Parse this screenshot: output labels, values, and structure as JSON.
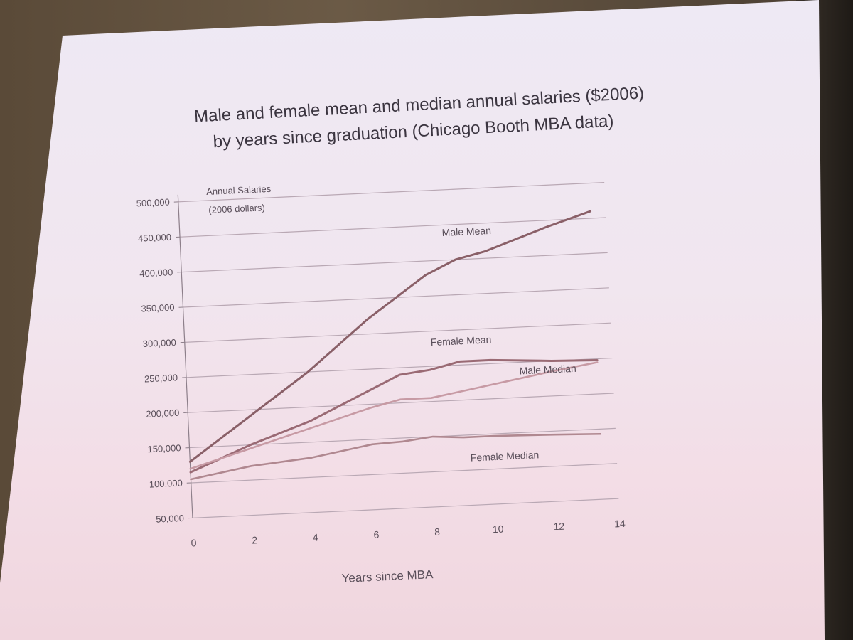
{
  "slide": {
    "title_line1": "Male and female mean and median annual salaries ($2006)",
    "title_line2": "by years since graduation  (Chicago Booth MBA data)"
  },
  "chart_data": {
    "type": "line",
    "ylabel_line1": "Annual Salaries",
    "ylabel_line2": "(2006 dollars)",
    "xlabel": "Years since MBA",
    "xlim": [
      0,
      14
    ],
    "ylim": [
      50000,
      500000
    ],
    "x_ticks": [
      "0",
      "2",
      "4",
      "6",
      "8",
      "10",
      "12",
      "14"
    ],
    "y_ticks": [
      "50,000",
      "100,000",
      "150,000",
      "200,000",
      "250,000",
      "300,000",
      "350,000",
      "400,000",
      "450,000",
      "500,000"
    ],
    "grid": true,
    "series": [
      {
        "name": "Male Mean",
        "color": "#8a6068",
        "x": [
          0,
          2,
          4,
          6,
          8,
          9,
          10,
          12,
          13.5
        ],
        "y": [
          130000,
          190000,
          250000,
          320000,
          380000,
          400000,
          410000,
          440000,
          460000
        ]
      },
      {
        "name": "Female Mean",
        "color": "#9a6a74",
        "x": [
          0,
          2,
          4,
          6,
          7,
          8,
          9,
          10,
          12,
          13.5
        ],
        "y": [
          115000,
          150000,
          180000,
          220000,
          240000,
          245000,
          255000,
          255000,
          250000,
          248000
        ]
      },
      {
        "name": "Male Median",
        "color": "#c79aa4",
        "x": [
          0,
          2,
          4,
          6,
          7,
          8,
          10,
          12,
          13.5
        ],
        "y": [
          120000,
          145000,
          170000,
          195000,
          205000,
          205000,
          220000,
          235000,
          245000
        ]
      },
      {
        "name": "Female Median",
        "color": "#b08890",
        "x": [
          0,
          2,
          4,
          6,
          7,
          8,
          9,
          10,
          12,
          13.5
        ],
        "y": [
          105000,
          120000,
          128000,
          143000,
          145000,
          150000,
          147000,
          147000,
          145000,
          143000
        ]
      }
    ]
  }
}
